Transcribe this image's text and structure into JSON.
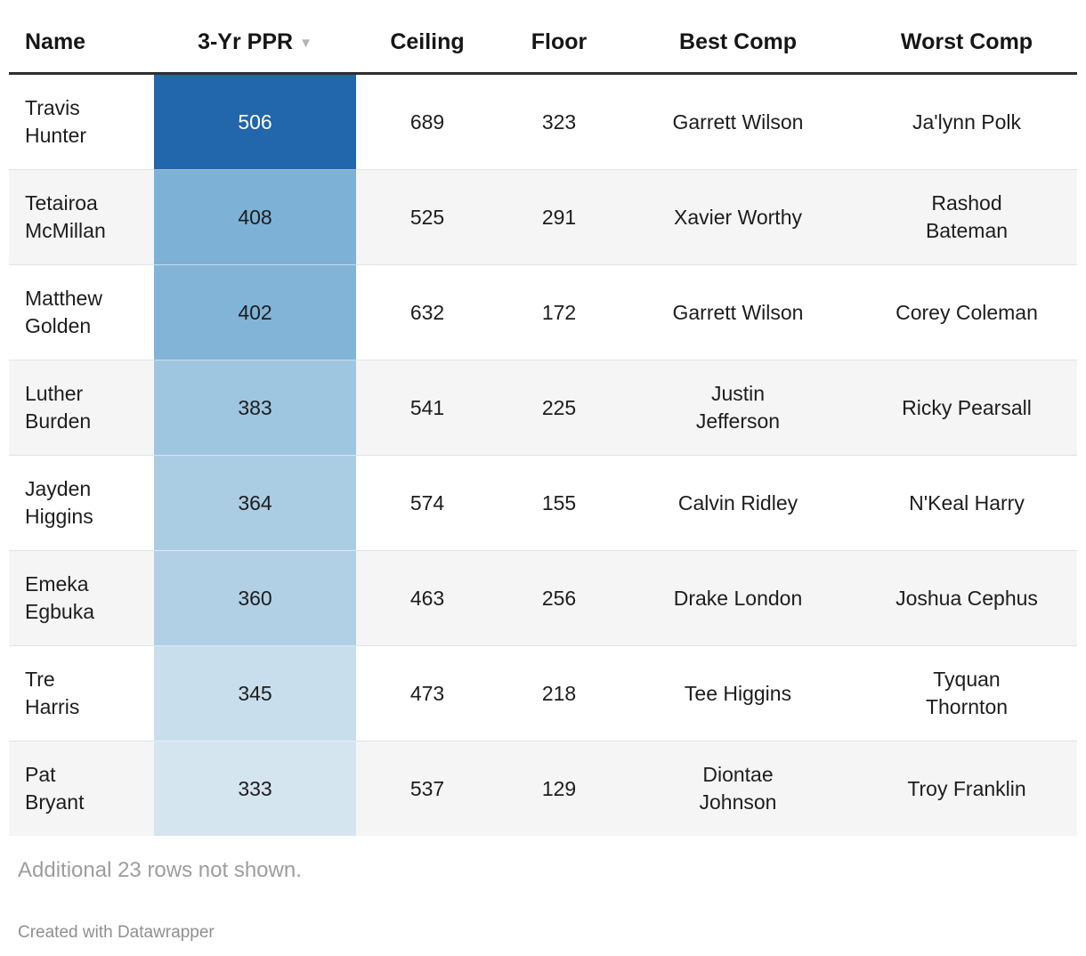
{
  "table": {
    "columns": [
      {
        "label": "Name"
      },
      {
        "label": "3-Yr PPR",
        "sorted": "desc"
      },
      {
        "label": "Ceiling"
      },
      {
        "label": "Floor"
      },
      {
        "label": "Best Comp"
      },
      {
        "label": "Worst Comp"
      }
    ],
    "sort_indicator": "▼",
    "rows": [
      {
        "name": "Travis Hunter",
        "ppr": "506",
        "ppr_bg": "#2266ab",
        "ppr_fg": "#ffffff",
        "ceiling": "689",
        "floor": "323",
        "best_comp": "Garrett Wilson",
        "worst_comp": "Ja'lynn Polk"
      },
      {
        "name": "Tetairoa McMillan",
        "ppr": "408",
        "ppr_bg": "#7db2d6",
        "ppr_fg": "#1d1d1d",
        "ceiling": "525",
        "floor": "291",
        "best_comp": "Xavier Worthy",
        "worst_comp": "Rashod Bateman"
      },
      {
        "name": "Matthew Golden",
        "ppr": "402",
        "ppr_bg": "#82b4d8",
        "ppr_fg": "#1d1d1d",
        "ceiling": "632",
        "floor": "172",
        "best_comp": "Garrett Wilson",
        "worst_comp": "Corey Coleman"
      },
      {
        "name": "Luther Burden",
        "ppr": "383",
        "ppr_bg": "#9fc6e0",
        "ppr_fg": "#1d1d1d",
        "ceiling": "541",
        "floor": "225",
        "best_comp": "Justin Jefferson",
        "worst_comp": "Ricky Pearsall"
      },
      {
        "name": "Jayden Higgins",
        "ppr": "364",
        "ppr_bg": "#abcde4",
        "ppr_fg": "#1d1d1d",
        "ceiling": "574",
        "floor": "155",
        "best_comp": "Calvin Ridley",
        "worst_comp": "N'Keal Harry"
      },
      {
        "name": "Emeka Egbuka",
        "ppr": "360",
        "ppr_bg": "#b1d0e6",
        "ppr_fg": "#1d1d1d",
        "ceiling": "463",
        "floor": "256",
        "best_comp": "Drake London",
        "worst_comp": "Joshua Cephus"
      },
      {
        "name": "Tre Harris",
        "ppr": "345",
        "ppr_bg": "#c8deed",
        "ppr_fg": "#1d1d1d",
        "ceiling": "473",
        "floor": "218",
        "best_comp": "Tee Higgins",
        "worst_comp": "Tyquan Thornton"
      },
      {
        "name": "Pat Bryant",
        "ppr": "333",
        "ppr_bg": "#d4e5f0",
        "ppr_fg": "#1d1d1d",
        "ceiling": "537",
        "floor": "129",
        "best_comp": "Diontae Johnson",
        "worst_comp": "Troy Franklin"
      }
    ]
  },
  "footer": {
    "note": "Additional 23 rows not shown.",
    "credit": "Created with Datawrapper"
  },
  "colors": {
    "heatmap_max": "#2266ab",
    "heatmap_min": "#d4e5f0",
    "row_alt_bg": "#f5f5f5",
    "row_border": "#e2e2e2",
    "header_border": "#2e2e2e",
    "text": "#1d1d1d",
    "muted_text": "#9d9d9d"
  },
  "chart_data": {
    "type": "table",
    "columns": [
      "Name",
      "3-Yr PPR",
      "Ceiling",
      "Floor",
      "Best Comp",
      "Worst Comp"
    ],
    "sorted_by": {
      "column": "3-Yr PPR",
      "direction": "desc"
    },
    "heatmap": {
      "column": "3-Yr PPR",
      "palette": "sequential-blues",
      "max_color": "#2266ab",
      "min_color": "#d4e5f0"
    },
    "rows": [
      [
        "Travis Hunter",
        506,
        689,
        323,
        "Garrett Wilson",
        "Ja'lynn Polk"
      ],
      [
        "Tetairoa McMillan",
        408,
        525,
        291,
        "Xavier Worthy",
        "Rashod Bateman"
      ],
      [
        "Matthew Golden",
        402,
        632,
        172,
        "Garrett Wilson",
        "Corey Coleman"
      ],
      [
        "Luther Burden",
        383,
        541,
        225,
        "Justin Jefferson",
        "Ricky Pearsall"
      ],
      [
        "Jayden Higgins",
        364,
        574,
        155,
        "Calvin Ridley",
        "N'Keal Harry"
      ],
      [
        "Emeka Egbuka",
        360,
        463,
        256,
        "Drake London",
        "Joshua Cephus"
      ],
      [
        "Tre Harris",
        345,
        473,
        218,
        "Tee Higgins",
        "Tyquan Thornton"
      ],
      [
        "Pat Bryant",
        333,
        537,
        129,
        "Diontae Johnson",
        "Troy Franklin"
      ]
    ],
    "note": "Additional 23 rows not shown."
  }
}
